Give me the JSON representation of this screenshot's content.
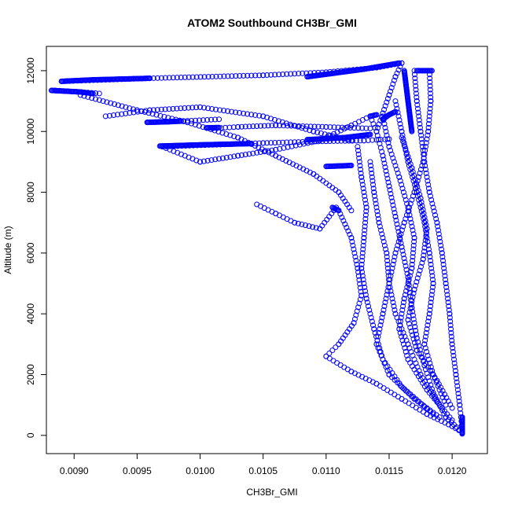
{
  "chart_data": {
    "type": "scatter",
    "title": "ATOM2 Southbound CH3Br_GMI",
    "xlabel": "CH3Br_GMI",
    "ylabel": "Altitude (m)",
    "xlim": [
      0.00878,
      0.01228
    ],
    "ylim": [
      -600,
      12800
    ],
    "x_ticks": [
      0.009,
      0.0095,
      0.01,
      0.0105,
      0.011,
      0.0115,
      0.012
    ],
    "x_tick_labels": [
      "0.0090",
      "0.0095",
      "0.0100",
      "0.0105",
      "0.0110",
      "0.0115",
      "0.0120"
    ],
    "y_ticks": [
      0,
      2000,
      4000,
      6000,
      8000,
      10000,
      12000
    ],
    "y_tick_labels": [
      "0",
      "2000",
      "4000",
      "6000",
      "8000",
      "10000",
      "12000"
    ],
    "marker": "open-circle",
    "color": "#0000ff",
    "series": [
      {
        "segments": [
          [
            [
              0.01208,
              100
            ],
            [
              0.01195,
              600
            ],
            [
              0.01185,
              1400
            ],
            [
              0.01178,
              2300
            ],
            [
              0.01172,
              3200
            ],
            [
              0.01168,
              4200
            ],
            [
              0.01165,
              5200
            ],
            [
              0.0116,
              6200
            ],
            [
              0.01155,
              7200
            ],
            [
              0.0115,
              8200
            ],
            [
              0.01145,
              9200
            ],
            [
              0.0114,
              10000
            ],
            [
              0.01135,
              10500
            ]
          ],
          [
            [
              0.01135,
              10500
            ],
            [
              0.0112,
              10200
            ],
            [
              0.01095,
              9700
            ],
            [
              0.0106,
              9400
            ],
            [
              0.0103,
              9200
            ],
            [
              0.01,
              9000
            ],
            [
              0.0097,
              9500
            ]
          ],
          [
            [
              0.0097,
              9500
            ],
            [
              0.0105,
              9620
            ],
            [
              0.011,
              9680
            ],
            [
              0.0113,
              9700
            ],
            [
              0.0115,
              9750
            ]
          ],
          [
            [
              0.00958,
              10300
            ],
            [
              0.0099,
              10350
            ],
            [
              0.01015,
              10400
            ]
          ],
          [
            [
              0.0101,
              10100
            ],
            [
              0.0103,
              10150
            ],
            [
              0.0106,
              10200
            ],
            [
              0.011,
              10150
            ],
            [
              0.01135,
              10100
            ]
          ],
          [
            [
              0.00925,
              10500
            ],
            [
              0.0096,
              10700
            ],
            [
              0.01,
              10800
            ],
            [
              0.0105,
              10500
            ],
            [
              0.0109,
              10000
            ],
            [
              0.0112,
              9700
            ]
          ],
          [
            [
              0.00885,
              11350
            ],
            [
              0.00905,
              11300
            ],
            [
              0.0092,
              11250
            ]
          ],
          [
            [
              0.00905,
              11200
            ],
            [
              0.0095,
              10700
            ],
            [
              0.0099,
              10300
            ],
            [
              0.0103,
              9800
            ],
            [
              0.0106,
              9200
            ],
            [
              0.0109,
              8600
            ],
            [
              0.0111,
              8000
            ],
            [
              0.0112,
              7400
            ]
          ],
          [
            [
              0.0089,
              11650
            ],
            [
              0.0096,
              11750
            ],
            [
              0.0105,
              11850
            ],
            [
              0.011,
              11950
            ],
            [
              0.0114,
              12100
            ],
            [
              0.0116,
              12250
            ]
          ],
          [
            [
              0.0116,
              12250
            ],
            [
              0.01155,
              11800
            ],
            [
              0.0115,
              11200
            ],
            [
              0.01145,
              10600
            ],
            [
              0.0114,
              10000
            ]
          ],
          [
            [
              0.01045,
              7600
            ],
            [
              0.0106,
              7300
            ],
            [
              0.01075,
              7000
            ],
            [
              0.01095,
              6800
            ],
            [
              0.01108,
              7500
            ]
          ],
          [
            [
              0.0111,
              7400
            ],
            [
              0.0112,
              6500
            ],
            [
              0.01125,
              5500
            ],
            [
              0.01128,
              4600
            ],
            [
              0.01122,
              3700
            ],
            [
              0.0111,
              3000
            ],
            [
              0.011,
              2600
            ]
          ],
          [
            [
              0.011,
              2600
            ],
            [
              0.0112,
              2100
            ],
            [
              0.0114,
              1700
            ],
            [
              0.0116,
              1200
            ],
            [
              0.0118,
              700
            ],
            [
              0.012,
              300
            ],
            [
              0.01208,
              100
            ]
          ],
          [
            [
              0.01135,
              9000
            ],
            [
              0.01138,
              8000
            ],
            [
              0.01142,
              7000
            ],
            [
              0.01148,
              6000
            ],
            [
              0.0115,
              5000
            ],
            [
              0.01145,
              4000
            ],
            [
              0.0114,
              3000
            ],
            [
              0.0115,
              2000
            ],
            [
              0.0117,
              1200
            ],
            [
              0.0119,
              600
            ]
          ],
          [
            [
              0.01155,
              11000
            ],
            [
              0.0116,
              10000
            ],
            [
              0.01165,
              9000
            ],
            [
              0.01172,
              8000
            ],
            [
              0.01178,
              7000
            ],
            [
              0.01182,
              6000
            ],
            [
              0.01185,
              5000
            ],
            [
              0.01182,
              4000
            ],
            [
              0.01178,
              3000
            ],
            [
              0.01185,
              2000
            ],
            [
              0.01195,
              1000
            ]
          ],
          [
            [
              0.0117,
              12000
            ],
            [
              0.01172,
              11000
            ],
            [
              0.01175,
              10000
            ],
            [
              0.01178,
              9000
            ],
            [
              0.01182,
              8000
            ],
            [
              0.01188,
              7000
            ],
            [
              0.01192,
              6000
            ],
            [
              0.01195,
              5000
            ],
            [
              0.01198,
              4000
            ],
            [
              0.012,
              3000
            ],
            [
              0.01203,
              2000
            ],
            [
              0.01206,
              1000
            ],
            [
              0.01208,
              200
            ]
          ],
          [
            [
              0.01182,
              12000
            ],
            [
              0.01183,
              11000
            ],
            [
              0.01181,
              10000
            ],
            [
              0.01177,
              9000
            ],
            [
              0.0117,
              8000
            ],
            [
              0.01162,
              7000
            ],
            [
              0.01155,
              6000
            ],
            [
              0.0115,
              5000
            ],
            [
              0.01155,
              4000
            ],
            [
              0.01165,
              3000
            ],
            [
              0.01175,
              2000
            ],
            [
              0.0119,
              1000
            ]
          ],
          [
            [
              0.01125,
              9500
            ],
            [
              0.01128,
              8500
            ],
            [
              0.01132,
              7500
            ],
            [
              0.0113,
              6500
            ],
            [
              0.01128,
              5500
            ],
            [
              0.01132,
              4500
            ],
            [
              0.01138,
              3500
            ],
            [
              0.01145,
              2500
            ],
            [
              0.0116,
              1600
            ],
            [
              0.01185,
              700
            ]
          ],
          [
            [
              0.01145,
              10500
            ],
            [
              0.0115,
              9500
            ],
            [
              0.01158,
              8500
            ],
            [
              0.01165,
              7500
            ],
            [
              0.0117,
              6500
            ],
            [
              0.01168,
              5500
            ],
            [
              0.01162,
              4500
            ],
            [
              0.01158,
              3500
            ],
            [
              0.01165,
              2500
            ],
            [
              0.0118,
              1500
            ],
            [
              0.012,
              500
            ]
          ],
          [
            [
              0.0116,
              9800
            ],
            [
              0.01168,
              8800
            ],
            [
              0.01175,
              7800
            ],
            [
              0.0118,
              6800
            ],
            [
              0.01177,
              5800
            ],
            [
              0.0117,
              4800
            ],
            [
              0.01165,
              3800
            ],
            [
              0.01172,
              2800
            ],
            [
              0.01188,
              1800
            ],
            [
              0.012,
              900
            ]
          ]
        ],
        "dense_runs": [
          [
            [
              0.00882,
              11350
            ],
            [
              0.00905,
              11300
            ],
            [
              0.00915,
              11250
            ]
          ],
          [
            [
              0.0089,
              11650
            ],
            [
              0.00915,
              11700
            ],
            [
              0.0096,
              11750
            ]
          ],
          [
            [
              0.01085,
              11800
            ],
            [
              0.0113,
              12050
            ],
            [
              0.01158,
              12250
            ]
          ],
          [
            [
              0.00958,
              10300
            ],
            [
              0.00975,
              10320
            ],
            [
              0.00985,
              10340
            ]
          ],
          [
            [
              0.01005,
              10120
            ],
            [
              0.01015,
              10130
            ]
          ],
          [
            [
              0.00968,
              9520
            ],
            [
              0.01,
              9560
            ],
            [
              0.0104,
              9600
            ]
          ],
          [
            [
              0.01085,
              9730
            ],
            [
              0.01115,
              9800
            ],
            [
              0.01135,
              9900
            ]
          ],
          [
            [
              0.011,
              8850
            ],
            [
              0.0112,
              8880
            ]
          ],
          [
            [
              0.01105,
              7500
            ],
            [
              0.0111,
              7400
            ]
          ],
          [
            [
              0.01172,
              12000
            ],
            [
              0.01178,
              12000
            ],
            [
              0.01184,
              12000
            ]
          ],
          [
            [
              0.01162,
              12000
            ],
            [
              0.01165,
              11000
            ],
            [
              0.01168,
              10000
            ]
          ],
          [
            [
              0.01145,
              10400
            ],
            [
              0.0115,
              10550
            ],
            [
              0.01155,
              10650
            ]
          ],
          [
            [
              0.01135,
              10500
            ],
            [
              0.0114,
              10550
            ]
          ],
          [
            [
              0.01208,
              600
            ],
            [
              0.01208,
              200
            ],
            [
              0.01208,
              50
            ]
          ]
        ]
      }
    ]
  }
}
